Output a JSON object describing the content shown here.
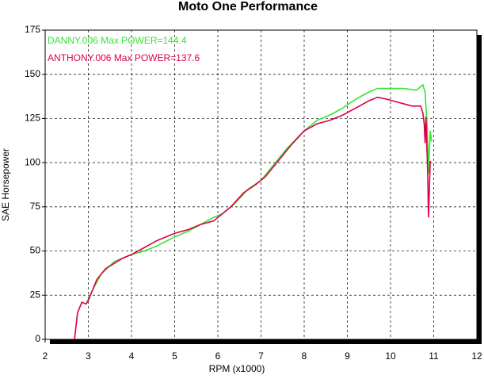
{
  "chart_data": {
    "type": "line",
    "title": "Moto One Performance",
    "x_label": "RPM (x1000)",
    "y_label": "SAE Horsepower",
    "xlim": [
      2,
      12
    ],
    "xticks": [
      2,
      3,
      4,
      5,
      6,
      7,
      8,
      9,
      10,
      11,
      12
    ],
    "ylim": [
      0,
      175
    ],
    "yticks": [
      0,
      25,
      50,
      75,
      100,
      125,
      150,
      175
    ],
    "grid": true,
    "series": [
      {
        "name": "DANNY.006  Max POWER=144.4",
        "color": "#33e633",
        "x": [
          2.95,
          3.1,
          3.3,
          3.6,
          4.0,
          4.3,
          4.6,
          5.0,
          5.3,
          5.6,
          5.9,
          6.1,
          6.4,
          6.7,
          7.0,
          7.3,
          7.6,
          8.0,
          8.3,
          8.6,
          8.9,
          9.2,
          9.5,
          9.7,
          10.0,
          10.3,
          10.6,
          10.75,
          10.8,
          10.85,
          10.88,
          10.92,
          10.95
        ],
        "values": [
          20,
          28,
          37,
          44,
          48,
          50,
          53,
          58,
          61,
          65,
          69,
          71,
          77,
          85,
          90,
          99,
          108,
          118,
          124,
          127,
          131,
          136,
          140,
          142,
          142,
          142,
          141,
          144,
          140,
          120,
          94,
          118,
          112
        ]
      },
      {
        "name": "ANTHONY.006  Max POWER=137.6",
        "color": "#dd0044",
        "x": [
          2.68,
          2.75,
          2.85,
          2.95,
          3.0,
          3.1,
          3.2,
          3.4,
          3.6,
          3.8,
          4.0,
          4.3,
          4.6,
          5.0,
          5.3,
          5.6,
          5.9,
          6.0,
          6.3,
          6.6,
          6.9,
          7.1,
          7.4,
          7.7,
          8.0,
          8.3,
          8.6,
          8.9,
          9.2,
          9.5,
          9.7,
          9.9,
          10.2,
          10.5,
          10.7,
          10.75,
          10.78,
          10.8,
          10.82,
          10.86,
          10.88,
          10.92
        ],
        "values": [
          0,
          15,
          21,
          20,
          22,
          28,
          34,
          40,
          43,
          46,
          48,
          52,
          56,
          60,
          62,
          65,
          67,
          69,
          75,
          83,
          88,
          92,
          101,
          110,
          118,
          122,
          124,
          127,
          131,
          135,
          137,
          136,
          134,
          132,
          132,
          128,
          122,
          111,
          126,
          95,
          69,
          101
        ]
      }
    ]
  }
}
